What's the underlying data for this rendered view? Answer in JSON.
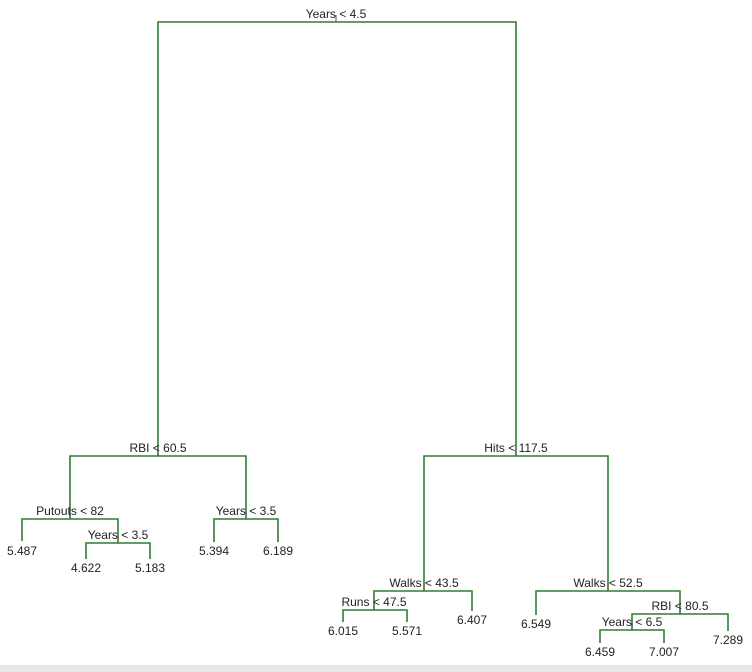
{
  "nodes": [
    {
      "label": "Years < 4.5"
    },
    {
      "label": "RBI < 60.5"
    },
    {
      "label": "Putouts < 82"
    },
    {
      "label": "Years < 3.5"
    },
    {
      "label": "Years < 3.5"
    },
    {
      "label": "Hits < 117.5"
    },
    {
      "label": "Walks < 43.5"
    },
    {
      "label": "Runs < 47.5"
    },
    {
      "label": "Walks < 52.5"
    },
    {
      "label": "RBI < 80.5"
    },
    {
      "label": "Years < 6.5"
    }
  ],
  "leaves": [
    {
      "label": "5.487"
    },
    {
      "label": "4.622"
    },
    {
      "label": "5.183"
    },
    {
      "label": "5.394"
    },
    {
      "label": "6.189"
    },
    {
      "label": "6.015"
    },
    {
      "label": "5.571"
    },
    {
      "label": "6.407"
    },
    {
      "label": "6.549"
    },
    {
      "label": "6.459"
    },
    {
      "label": "7.007"
    },
    {
      "label": "7.289"
    }
  ]
}
